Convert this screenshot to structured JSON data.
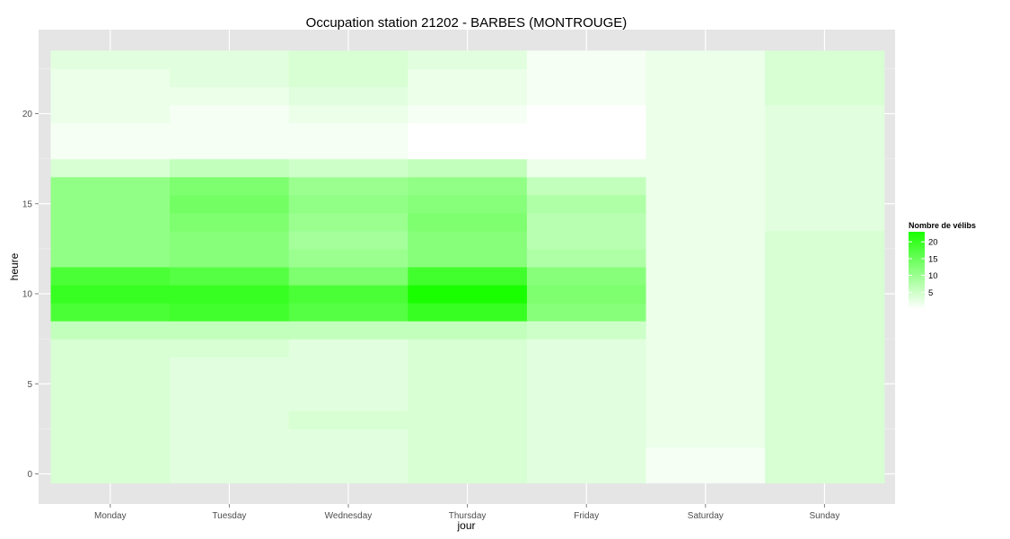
{
  "chart_data": {
    "type": "heatmap",
    "title": "Occupation station 21202 - BARBES (MONTROUGE)",
    "xlabel": "jour",
    "ylabel": "heure",
    "x_categories": [
      "Monday",
      "Tuesday",
      "Wednesday",
      "Thursday",
      "Friday",
      "Saturday",
      "Sunday"
    ],
    "y_range": [
      -0.5,
      23.5
    ],
    "y_ticks": [
      0,
      5,
      10,
      15,
      20
    ],
    "hours": [
      0,
      1,
      2,
      3,
      4,
      5,
      6,
      7,
      8,
      9,
      10,
      11,
      12,
      13,
      14,
      15,
      16,
      17,
      18,
      19,
      20,
      21,
      22,
      23
    ],
    "values": [
      [
        4,
        3,
        3,
        4,
        3,
        1,
        4
      ],
      [
        4,
        3,
        3,
        4,
        3,
        1,
        4
      ],
      [
        4,
        3,
        3,
        4,
        3,
        2,
        4
      ],
      [
        4,
        3,
        4,
        4,
        3,
        2,
        4
      ],
      [
        4,
        3,
        3,
        4,
        3,
        2,
        4
      ],
      [
        4,
        3,
        3,
        4,
        3,
        2,
        4
      ],
      [
        4,
        3,
        3,
        4,
        3,
        2,
        4
      ],
      [
        4,
        4,
        3,
        4,
        3,
        2,
        4
      ],
      [
        6,
        6,
        6,
        6,
        5,
        2,
        4
      ],
      [
        18,
        19,
        17,
        20,
        12,
        2,
        4
      ],
      [
        20,
        20,
        18,
        23,
        13,
        2,
        4
      ],
      [
        18,
        17,
        13,
        19,
        12,
        2,
        4
      ],
      [
        11,
        12,
        10,
        12,
        8,
        2,
        4
      ],
      [
        11,
        12,
        9,
        12,
        7,
        2,
        4
      ],
      [
        11,
        13,
        10,
        13,
        7,
        2,
        3
      ],
      [
        11,
        14,
        11,
        12,
        8,
        2,
        3
      ],
      [
        11,
        13,
        10,
        11,
        6,
        2,
        3
      ],
      [
        4,
        6,
        5,
        6,
        2,
        2,
        3
      ],
      [
        1,
        1,
        1,
        0,
        0,
        2,
        3
      ],
      [
        1,
        1,
        1,
        0,
        0,
        2,
        3
      ],
      [
        2,
        1,
        2,
        1,
        0,
        2,
        3
      ],
      [
        2,
        2,
        3,
        2,
        1,
        2,
        4
      ],
      [
        2,
        3,
        4,
        2,
        1,
        2,
        4
      ],
      [
        3,
        3,
        4,
        3,
        1,
        2,
        4
      ]
    ],
    "legend": {
      "title": "Nombre de vélibs",
      "breaks": [
        5,
        10,
        15,
        20
      ],
      "range": [
        0,
        23
      ],
      "low_color": "#ffffff",
      "high_color": "#19ff00"
    },
    "panel_color": "#e5e5e5",
    "grid_color": "#ffffff",
    "grid": true,
    "legend_position": "right"
  }
}
